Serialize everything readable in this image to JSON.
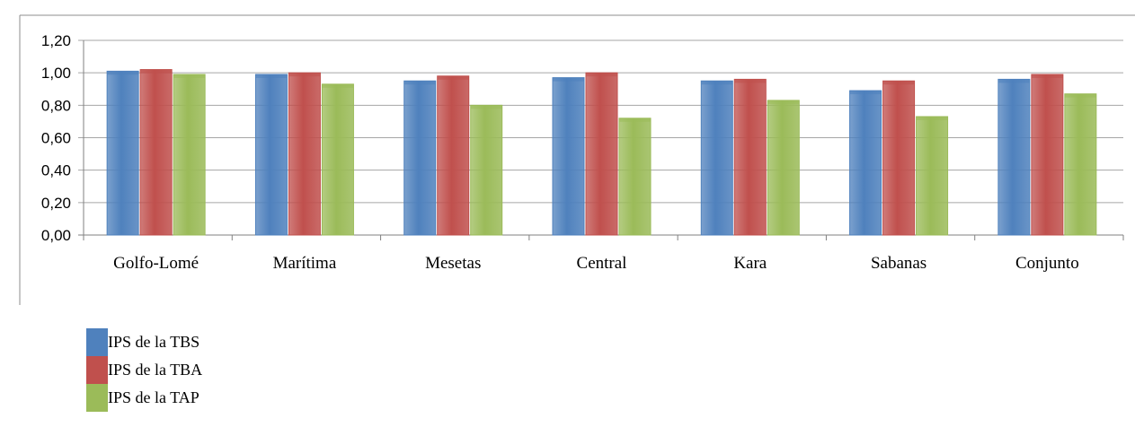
{
  "chart_data": {
    "type": "bar",
    "categories": [
      "Golfo-Lomé",
      "Marítima",
      "Mesetas",
      "Central",
      "Kara",
      "Sabanas",
      "Conjunto"
    ],
    "series": [
      {
        "name": "IPS de la TBS",
        "color": "#4f81bd",
        "values": [
          1.01,
          0.99,
          0.95,
          0.97,
          0.95,
          0.89,
          0.96
        ]
      },
      {
        "name": "IPS de la TBA",
        "color": "#c0504d",
        "values": [
          1.02,
          1.0,
          0.98,
          1.0,
          0.96,
          0.95,
          0.99
        ]
      },
      {
        "name": "IPS de la TAP",
        "color": "#9bbb59",
        "values": [
          0.99,
          0.93,
          0.8,
          0.72,
          0.83,
          0.73,
          0.87
        ]
      }
    ],
    "yticks": [
      "0,00",
      "0,20",
      "0,40",
      "0,60",
      "0,80",
      "1,00",
      "1,20"
    ],
    "ylim": [
      0,
      1.2
    ],
    "grid": true,
    "legend_position": "bottom-left"
  }
}
